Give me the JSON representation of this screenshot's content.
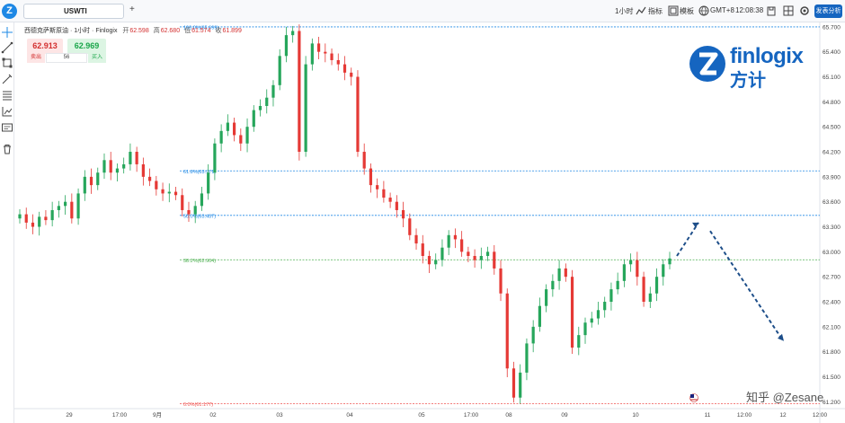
{
  "toolbar": {
    "symbol": "USWTI",
    "add_tab": "+",
    "interval": "1小时",
    "indicators": "指标",
    "template": "模板",
    "timezone": "GMT+8",
    "clock": "12:08:38",
    "publish": "发表分析"
  },
  "chart_info": {
    "title": "西德克萨斯原油 · 1小时 · Finlogix",
    "open_k": "开",
    "open_v": "62.598",
    "high_k": "高",
    "high_v": "62.680",
    "low_k": "低",
    "low_v": "61.574",
    "close_k": "收",
    "close_v": "61.899"
  },
  "trade": {
    "sell_price": "62.913",
    "buy_price": "62.969",
    "sell_label": "卖出",
    "spread": "56",
    "buy_label": "买入"
  },
  "brand": {
    "name": "finlogix",
    "chinese": "方计"
  },
  "watermark": "知乎 @Zesane",
  "colors": {
    "up": "#26a65b",
    "down": "#e53935",
    "fib": "#1e88e5",
    "fib_mid": "#4caf50",
    "fib_base": "#ef5350",
    "arrow": "#1d4e89"
  },
  "chart_data": {
    "type": "candlestick",
    "y_ticks": [
      "65.700",
      "65.400",
      "65.100",
      "64.800",
      "64.500",
      "64.200",
      "63.900",
      "63.600",
      "63.300",
      "63.000",
      "62.700",
      "62.400",
      "62.100",
      "61.800",
      "61.500",
      "61.200"
    ],
    "ylim": [
      61.15,
      65.72
    ],
    "x_ticks": [
      "29",
      "17:00",
      "9月",
      "02",
      "03",
      "04",
      "05",
      "17:00",
      "08",
      "09",
      "10",
      "11",
      "12:00",
      "12",
      "12:00"
    ],
    "fib_levels": [
      {
        "label": "100.0%(65.699)",
        "value": 65.699
      },
      {
        "label": "61.8%(63.971)",
        "value": 63.971
      },
      {
        "label": "50.0%(63.437)",
        "value": 63.437
      },
      {
        "label": "38.2%(62.904)",
        "value": 62.904
      },
      {
        "label": "0.0%(61.177)",
        "value": 61.177
      }
    ],
    "close_series": [
      63.45,
      63.35,
      63.3,
      63.42,
      63.38,
      63.5,
      63.55,
      63.6,
      63.4,
      63.7,
      63.9,
      63.8,
      63.95,
      64.1,
      63.95,
      64.0,
      64.05,
      64.2,
      64.05,
      63.9,
      63.85,
      63.75,
      63.7,
      63.72,
      63.68,
      63.5,
      63.45,
      63.55,
      63.7,
      63.95,
      64.3,
      64.45,
      64.55,
      64.4,
      64.3,
      64.5,
      64.7,
      64.75,
      64.85,
      65.0,
      65.35,
      65.6,
      65.65,
      64.2,
      65.25,
      65.5,
      65.4,
      65.38,
      65.3,
      65.25,
      65.15,
      65.1,
      64.2,
      64.0,
      63.8,
      63.75,
      63.65,
      63.6,
      63.5,
      63.4,
      63.2,
      63.1,
      62.95,
      62.85,
      62.9,
      63.05,
      63.2,
      63.15,
      63.0,
      62.95,
      62.9,
      62.95,
      63.0,
      62.8,
      62.5,
      61.6,
      61.25,
      61.55,
      61.9,
      62.1,
      62.35,
      62.55,
      62.65,
      62.8,
      62.7,
      61.85,
      62.0,
      62.15,
      62.2,
      62.3,
      62.4,
      62.55,
      62.65,
      62.85,
      62.9,
      62.7,
      62.4,
      62.5,
      62.7,
      62.85,
      62.92
    ]
  }
}
